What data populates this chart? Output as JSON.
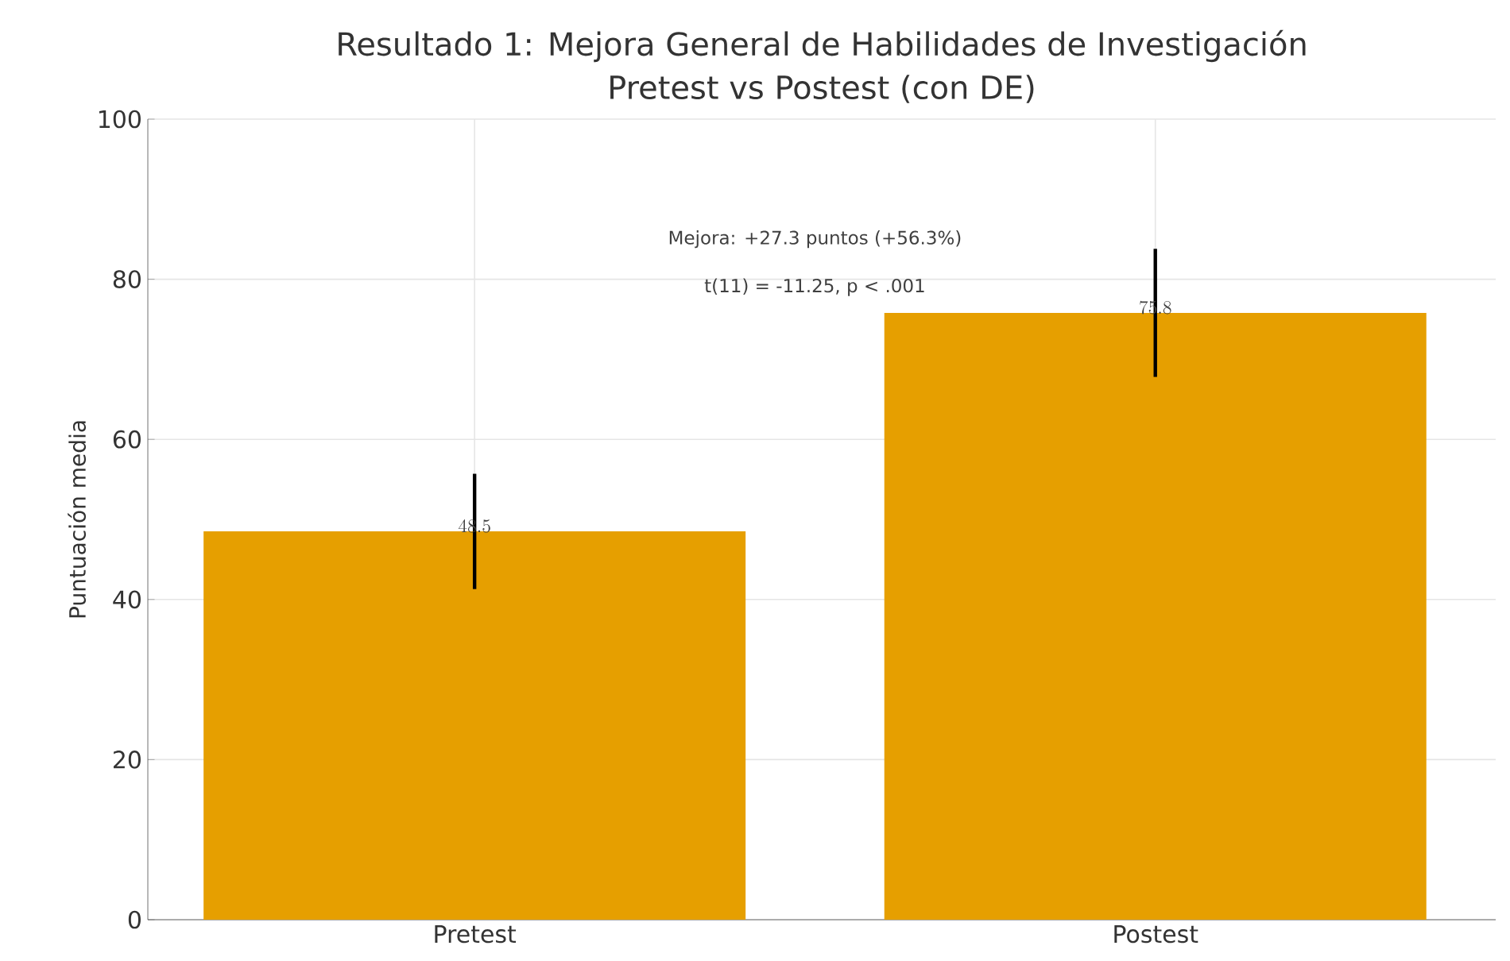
{
  "chart_data": {
    "type": "bar",
    "title": "Resultado 1: Mejora General de Habilidades de Investigación",
    "subtitle": "Pretest vs Postest (con DE)",
    "ylabel": "Puntuación media",
    "categories": [
      "Pretest",
      "Postest"
    ],
    "values": [
      48.5,
      75.8
    ],
    "errors": [
      7.2,
      8.0
    ],
    "color": "#e69f00",
    "data_labels": true,
    "annotations": [
      "Mejora: +27.3 puntos (+56.3%)",
      "t(11) = -11.25, p < .001"
    ],
    "ylim": [
      0,
      100
    ],
    "yticks": [
      0,
      20,
      40,
      60,
      80,
      100
    ],
    "grid": true
  }
}
